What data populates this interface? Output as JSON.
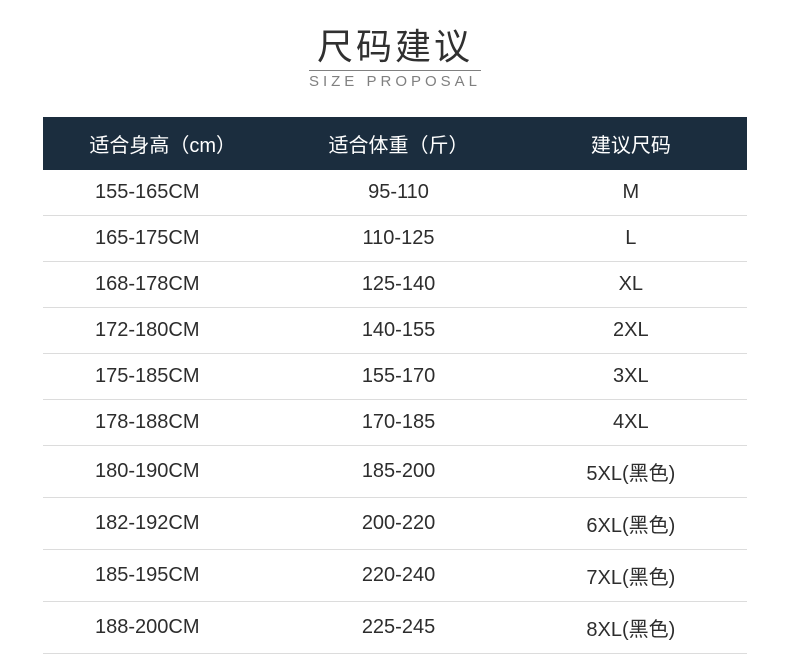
{
  "title": {
    "cn": "尺码建议",
    "en": "SIZE PROPOSAL"
  },
  "table": {
    "columns": [
      "适合身高（cm）",
      "适合体重（斤）",
      "建议尺码"
    ],
    "header_bg": "#1b2d3e",
    "header_text_color": "#ffffff",
    "row_text_color": "#2d2d2d",
    "border_color": "#dcdcdc",
    "rows": [
      {
        "height": "155-165CM",
        "weight": "95-110",
        "size": "M"
      },
      {
        "height": "165-175CM",
        "weight": "110-125",
        "size": "L"
      },
      {
        "height": "168-178CM",
        "weight": "125-140",
        "size": "XL"
      },
      {
        "height": "172-180CM",
        "weight": "140-155",
        "size": "2XL"
      },
      {
        "height": "175-185CM",
        "weight": "155-170",
        "size": "3XL"
      },
      {
        "height": "178-188CM",
        "weight": "170-185",
        "size": "4XL"
      },
      {
        "height": "180-190CM",
        "weight": "185-200",
        "size": "5XL(黑色)"
      },
      {
        "height": "182-192CM",
        "weight": "200-220",
        "size": "6XL(黑色)"
      },
      {
        "height": "185-195CM",
        "weight": "220-240",
        "size": "7XL(黑色)"
      },
      {
        "height": "188-200CM",
        "weight": "225-245",
        "size": "8XL(黑色)"
      }
    ]
  }
}
